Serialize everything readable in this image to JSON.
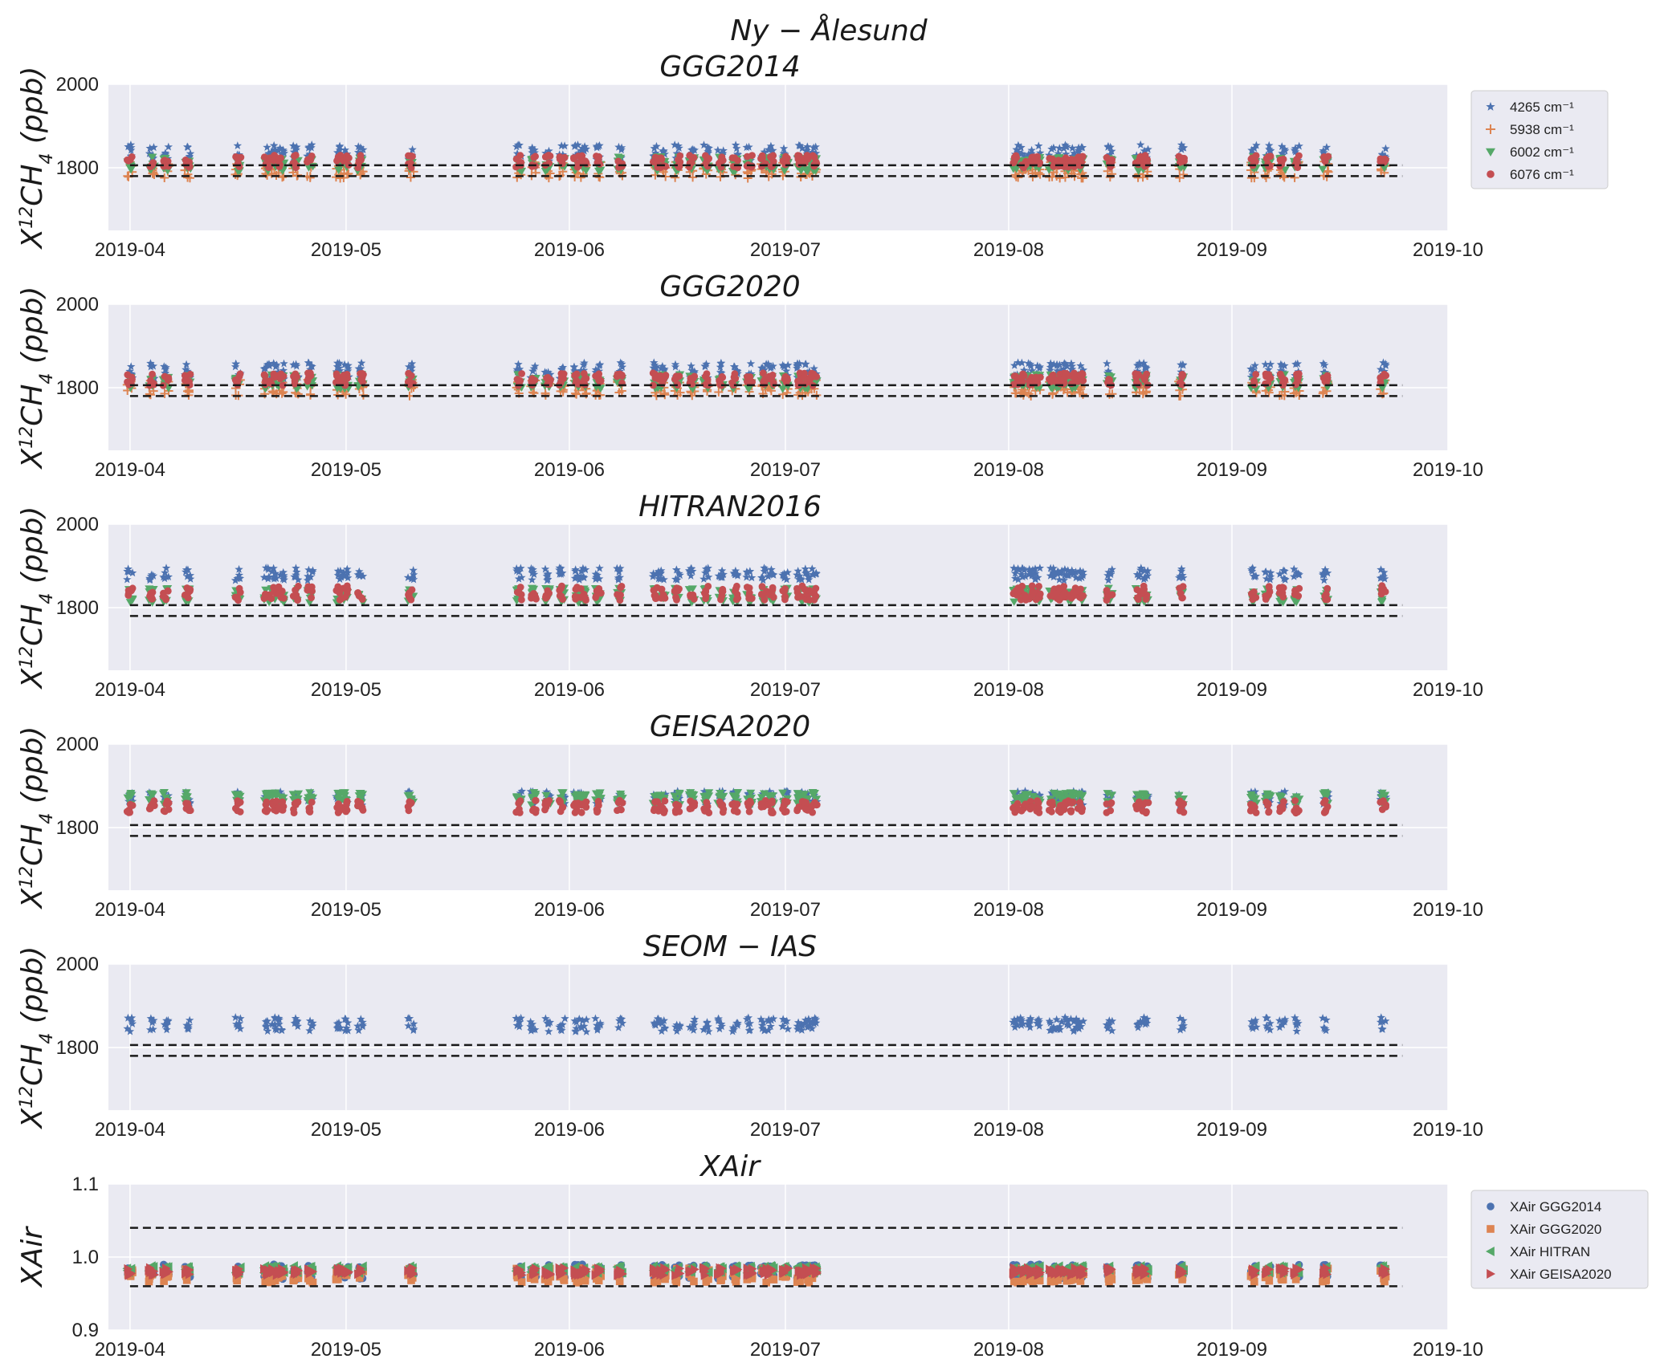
{
  "figure": {
    "title": "Ny − Ålesund"
  },
  "colors": {
    "axes_bg": "#eaeaf2",
    "grid": "#ffffff",
    "blue": "#4c72b0",
    "orange": "#dd8452",
    "green": "#55a868",
    "red": "#c44e52",
    "dashed": "#1a1a1a"
  },
  "xaxis": {
    "tick_labels": [
      "2019-04",
      "2019-05",
      "2019-06",
      "2019-07",
      "2019-08",
      "2019-09",
      "2019-10"
    ]
  },
  "chart_data": [
    {
      "type": "scatter",
      "title": "GGG2014",
      "ylabel": "X12CH4 (ppb)",
      "xlim": [
        "2019-03-29",
        "2019-10-01"
      ],
      "ylim": [
        1650,
        2000
      ],
      "yticks": [
        1800,
        2000
      ],
      "reference_lines": [
        1780,
        1806
      ],
      "grid": true,
      "legend_position": "right",
      "series": [
        {
          "name": "4265 cm⁻¹",
          "marker": "star",
          "color": "#4c72b0",
          "offset": 25,
          "spread": 40
        },
        {
          "name": "5938 cm⁻¹",
          "marker": "plus",
          "color": "#dd8452",
          "offset": -15,
          "spread": 40
        },
        {
          "name": "6002 cm⁻¹",
          "marker": "triangle-down",
          "color": "#55a868",
          "offset": 0,
          "spread": 35
        },
        {
          "name": "6076 cm⁻¹",
          "marker": "circle",
          "color": "#c44e52",
          "offset": 5,
          "spread": 30
        }
      ]
    },
    {
      "type": "scatter",
      "title": "GGG2020",
      "ylabel": "X12CH4 (ppb)",
      "xlim": [
        "2019-03-29",
        "2019-10-01"
      ],
      "ylim": [
        1650,
        2000
      ],
      "yticks": [
        1800,
        2000
      ],
      "reference_lines": [
        1780,
        1806
      ],
      "grid": true,
      "series": [
        {
          "name": "4265 cm⁻¹",
          "marker": "star",
          "color": "#4c72b0",
          "offset": 30,
          "spread": 40
        },
        {
          "name": "5938 cm⁻¹",
          "marker": "plus",
          "color": "#dd8452",
          "offset": -10,
          "spread": 40
        },
        {
          "name": "6002 cm⁻¹",
          "marker": "triangle-down",
          "color": "#55a868",
          "offset": 5,
          "spread": 35
        },
        {
          "name": "6076 cm⁻¹",
          "marker": "circle",
          "color": "#c44e52",
          "offset": 10,
          "spread": 30
        }
      ]
    },
    {
      "type": "scatter",
      "title": "HITRAN2016",
      "ylabel": "X12CH4 (ppb)",
      "xlim": [
        "2019-03-29",
        "2019-10-01"
      ],
      "ylim": [
        1650,
        2000
      ],
      "yticks": [
        1800,
        2000
      ],
      "reference_lines": [
        1780,
        1806
      ],
      "grid": true,
      "series": [
        {
          "name": "4265 cm⁻¹",
          "marker": "star",
          "color": "#4c72b0",
          "offset": 70,
          "spread": 30
        },
        {
          "name": "6002 cm⁻¹",
          "marker": "triangle-down",
          "color": "#55a868",
          "offset": 20,
          "spread": 35
        },
        {
          "name": "6076 cm⁻¹",
          "marker": "circle",
          "color": "#c44e52",
          "offset": 25,
          "spread": 35
        }
      ]
    },
    {
      "type": "scatter",
      "title": "GEISA2020",
      "ylabel": "X12CH4 (ppb)",
      "xlim": [
        "2019-03-29",
        "2019-10-01"
      ],
      "ylim": [
        1650,
        2000
      ],
      "yticks": [
        1800,
        2000
      ],
      "reference_lines": [
        1780,
        1806
      ],
      "grid": true,
      "series": [
        {
          "name": "4265 cm⁻¹",
          "marker": "star",
          "color": "#4c72b0",
          "offset": 60,
          "spread": 35
        },
        {
          "name": "6002 cm⁻¹",
          "marker": "triangle-down",
          "color": "#55a868",
          "offset": 60,
          "spread": 30
        },
        {
          "name": "6076 cm⁻¹",
          "marker": "circle",
          "color": "#c44e52",
          "offset": 40,
          "spread": 30
        }
      ]
    },
    {
      "type": "scatter",
      "title": "SEOM − IAS",
      "ylabel": "X12CH4 (ppb)",
      "xlim": [
        "2019-03-29",
        "2019-10-01"
      ],
      "ylim": [
        1650,
        2000
      ],
      "yticks": [
        1800,
        2000
      ],
      "reference_lines": [
        1780,
        1806
      ],
      "grid": true,
      "series": [
        {
          "name": "4265 cm⁻¹",
          "marker": "star",
          "color": "#4c72b0",
          "offset": 45,
          "spread": 35
        }
      ]
    },
    {
      "type": "scatter",
      "title": "XAir",
      "ylabel": "XAir",
      "xlim": [
        "2019-03-29",
        "2019-10-01"
      ],
      "ylim": [
        0.9,
        1.1
      ],
      "yticks": [
        0.9,
        1.0,
        1.1
      ],
      "reference_lines": [
        0.96,
        1.04
      ],
      "grid": true,
      "legend_position": "right",
      "series": [
        {
          "name": "XAir GGG2014",
          "marker": "circle",
          "color": "#4c72b0",
          "offset": -0.005,
          "spread": 0.02
        },
        {
          "name": "XAir GGG2020",
          "marker": "square",
          "color": "#dd8452",
          "offset": -0.01,
          "spread": 0.02
        },
        {
          "name": "XAir HITRAN",
          "marker": "triangle-left",
          "color": "#55a868",
          "offset": -0.002,
          "spread": 0.01
        },
        {
          "name": "XAir GEISA2020",
          "marker": "triangle-right",
          "color": "#c44e52",
          "offset": -0.005,
          "spread": 0.01
        }
      ]
    }
  ],
  "measurement_days": [
    "2019-04-01",
    "2019-04-04",
    "2019-04-06",
    "2019-04-09",
    "2019-04-16",
    "2019-04-20",
    "2019-04-21",
    "2019-04-22",
    "2019-04-24",
    "2019-04-26",
    "2019-04-30",
    "2019-05-01",
    "2019-05-03",
    "2019-05-10",
    "2019-05-25",
    "2019-05-27",
    "2019-05-29",
    "2019-05-31",
    "2019-06-02",
    "2019-06-03",
    "2019-06-05",
    "2019-06-08",
    "2019-06-13",
    "2019-06-14",
    "2019-06-16",
    "2019-06-18",
    "2019-06-20",
    "2019-06-22",
    "2019-06-24",
    "2019-06-26",
    "2019-06-28",
    "2019-06-29",
    "2019-07-01",
    "2019-07-03",
    "2019-07-04",
    "2019-07-05",
    "2019-08-02",
    "2019-08-03",
    "2019-08-04",
    "2019-08-05",
    "2019-08-07",
    "2019-08-08",
    "2019-08-09",
    "2019-08-10",
    "2019-08-11",
    "2019-08-15",
    "2019-08-19",
    "2019-08-20",
    "2019-08-25",
    "2019-09-04",
    "2019-09-06",
    "2019-09-08",
    "2019-09-10",
    "2019-09-14",
    "2019-09-22"
  ]
}
